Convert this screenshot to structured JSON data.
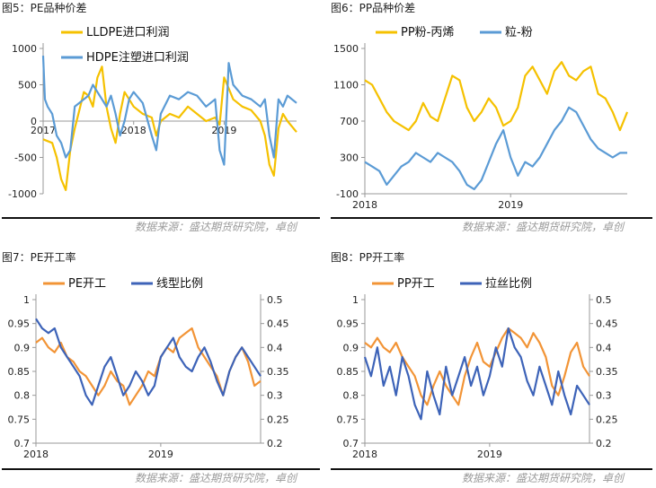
{
  "colors": {
    "orange": "#f29436",
    "blue": "#3d63b8",
    "yellow": "#f5c100",
    "skyblue": "#5b9bd5"
  },
  "panels": {
    "p5": {
      "title": "图5：PE品种价差",
      "source": "数据来源：盛达期货研究院，卓创"
    },
    "p6": {
      "title": "图6：PP品种价差",
      "source": "数据来源：盛达期货研究院，卓创"
    },
    "p7": {
      "title": "图7：PE开工率",
      "source": "数据来源：盛达期货研究院，卓创"
    },
    "p8": {
      "title": "图8：PP开工率",
      "source": "数据来源：盛达期货研究院，卓创"
    }
  },
  "chart_data": [
    {
      "id": "p5",
      "type": "line",
      "title": "",
      "y_ticks": [
        -1000,
        -500,
        0,
        500,
        1000
      ],
      "ylim": [
        -1000,
        1000
      ],
      "x_labels": [
        "2017",
        "2018",
        "2019"
      ],
      "x_label_pos": [
        2017.0,
        2018.0,
        2019.0
      ],
      "xlim": [
        2017.0,
        2019.8
      ],
      "series": [
        {
          "name": "LLDPE进口利润",
          "color": "yellow",
          "x": [
            2017.0,
            2017.1,
            2017.15,
            2017.2,
            2017.25,
            2017.3,
            2017.35,
            2017.4,
            2017.45,
            2017.5,
            2017.55,
            2017.6,
            2017.65,
            2017.7,
            2017.75,
            2017.8,
            2017.85,
            2017.9,
            2017.95,
            2018.0,
            2018.1,
            2018.2,
            2018.25,
            2018.3,
            2018.4,
            2018.5,
            2018.6,
            2018.7,
            2018.8,
            2018.9,
            2018.95,
            2019.0,
            2019.05,
            2019.1,
            2019.2,
            2019.3,
            2019.4,
            2019.45,
            2019.5,
            2019.55,
            2019.6,
            2019.65,
            2019.7,
            2019.8
          ],
          "y": [
            -250,
            -300,
            -500,
            -800,
            -950,
            -400,
            -100,
            150,
            400,
            350,
            200,
            600,
            750,
            200,
            -100,
            -300,
            100,
            400,
            300,
            200,
            100,
            50,
            -200,
            0,
            100,
            50,
            200,
            100,
            0,
            50,
            -50,
            600,
            450,
            300,
            200,
            150,
            0,
            -200,
            -600,
            -750,
            -100,
            100,
            0,
            -150
          ]
        },
        {
          "name": "HDPE注塑进口利润",
          "color": "skyblue",
          "x": [
            2017.0,
            2017.02,
            2017.05,
            2017.1,
            2017.15,
            2017.2,
            2017.25,
            2017.3,
            2017.35,
            2017.4,
            2017.45,
            2017.5,
            2017.55,
            2017.6,
            2017.65,
            2017.7,
            2017.75,
            2017.8,
            2017.85,
            2017.9,
            2017.95,
            2018.0,
            2018.1,
            2018.2,
            2018.25,
            2018.3,
            2018.4,
            2018.5,
            2018.6,
            2018.7,
            2018.8,
            2018.9,
            2018.95,
            2019.0,
            2019.05,
            2019.1,
            2019.2,
            2019.3,
            2019.4,
            2019.45,
            2019.5,
            2019.55,
            2019.6,
            2019.65,
            2019.7,
            2019.8
          ],
          "y": [
            900,
            300,
            200,
            100,
            -200,
            -300,
            -500,
            -400,
            200,
            250,
            300,
            350,
            500,
            400,
            300,
            200,
            350,
            100,
            -200,
            0,
            300,
            400,
            250,
            -200,
            -400,
            100,
            350,
            300,
            400,
            350,
            200,
            300,
            -400,
            -600,
            800,
            500,
            350,
            300,
            200,
            300,
            -200,
            -500,
            300,
            200,
            350,
            250
          ]
        }
      ]
    },
    {
      "id": "p6",
      "type": "line",
      "title": "",
      "y_ticks": [
        -100,
        300,
        700,
        1100,
        1500
      ],
      "ylim": [
        -100,
        1500
      ],
      "x_labels": [
        "2018",
        "2019"
      ],
      "x_label_pos": [
        2018.0,
        2019.0
      ],
      "xlim": [
        2018.0,
        2019.8
      ],
      "series": [
        {
          "name": "PP粉-丙烯",
          "color": "yellow",
          "x": [
            2018.0,
            2018.05,
            2018.1,
            2018.15,
            2018.2,
            2018.25,
            2018.3,
            2018.35,
            2018.4,
            2018.45,
            2018.5,
            2018.55,
            2018.6,
            2018.65,
            2018.7,
            2018.75,
            2018.8,
            2018.85,
            2018.9,
            2018.95,
            2019.0,
            2019.05,
            2019.1,
            2019.15,
            2019.2,
            2019.25,
            2019.3,
            2019.35,
            2019.4,
            2019.45,
            2019.5,
            2019.55,
            2019.6,
            2019.65,
            2019.7,
            2019.75,
            2019.8
          ],
          "y": [
            1150,
            1100,
            950,
            800,
            700,
            650,
            600,
            700,
            900,
            750,
            700,
            950,
            1200,
            1150,
            850,
            700,
            800,
            950,
            850,
            650,
            700,
            850,
            1200,
            1300,
            1150,
            1000,
            1250,
            1350,
            1200,
            1150,
            1250,
            1300,
            1000,
            950,
            800,
            600,
            800
          ]
        },
        {
          "name": "粒-粉",
          "color": "skyblue",
          "x": [
            2018.0,
            2018.05,
            2018.1,
            2018.15,
            2018.2,
            2018.25,
            2018.3,
            2018.35,
            2018.4,
            2018.45,
            2018.5,
            2018.55,
            2018.6,
            2018.65,
            2018.7,
            2018.75,
            2018.8,
            2018.85,
            2018.9,
            2018.95,
            2019.0,
            2019.05,
            2019.1,
            2019.15,
            2019.2,
            2019.25,
            2019.3,
            2019.35,
            2019.4,
            2019.45,
            2019.5,
            2019.55,
            2019.6,
            2019.65,
            2019.7,
            2019.75,
            2019.8
          ],
          "y": [
            250,
            200,
            150,
            0,
            100,
            200,
            250,
            350,
            300,
            250,
            350,
            300,
            250,
            150,
            0,
            -50,
            50,
            250,
            450,
            600,
            300,
            100,
            250,
            200,
            300,
            450,
            600,
            700,
            850,
            800,
            650,
            500,
            400,
            350,
            300,
            350,
            350
          ]
        }
      ]
    },
    {
      "id": "p7",
      "type": "line",
      "title": "",
      "y_ticks": [
        0.7,
        0.75,
        0.8,
        0.85,
        0.9,
        0.95,
        1
      ],
      "ylim": [
        0.7,
        1.0
      ],
      "y2_ticks": [
        0.2,
        0.25,
        0.3,
        0.35,
        0.4,
        0.45,
        0.5
      ],
      "y2lim": [
        0.2,
        0.5
      ],
      "x_labels": [
        "2018",
        "2019"
      ],
      "x_label_pos": [
        2018.0,
        2019.0
      ],
      "xlim": [
        2018.0,
        2019.8
      ],
      "series": [
        {
          "name": "PE开工",
          "color": "orange",
          "axis": "left",
          "x": [
            2018.0,
            2018.05,
            2018.1,
            2018.15,
            2018.2,
            2018.25,
            2018.3,
            2018.35,
            2018.4,
            2018.45,
            2018.5,
            2018.55,
            2018.6,
            2018.65,
            2018.7,
            2018.75,
            2018.8,
            2018.85,
            2018.9,
            2018.95,
            2019.0,
            2019.05,
            2019.1,
            2019.15,
            2019.2,
            2019.25,
            2019.3,
            2019.35,
            2019.4,
            2019.45,
            2019.5,
            2019.55,
            2019.6,
            2019.65,
            2019.7,
            2019.75,
            2019.8
          ],
          "y": [
            0.91,
            0.92,
            0.9,
            0.89,
            0.91,
            0.88,
            0.87,
            0.85,
            0.84,
            0.82,
            0.8,
            0.82,
            0.85,
            0.83,
            0.82,
            0.78,
            0.8,
            0.82,
            0.85,
            0.84,
            0.88,
            0.9,
            0.89,
            0.92,
            0.93,
            0.94,
            0.9,
            0.88,
            0.86,
            0.84,
            0.8,
            0.85,
            0.88,
            0.9,
            0.87,
            0.82,
            0.83
          ]
        },
        {
          "name": "线型比例",
          "color": "blue",
          "axis": "right",
          "x": [
            2018.0,
            2018.05,
            2018.1,
            2018.15,
            2018.2,
            2018.25,
            2018.3,
            2018.35,
            2018.4,
            2018.45,
            2018.5,
            2018.55,
            2018.6,
            2018.65,
            2018.7,
            2018.75,
            2018.8,
            2018.85,
            2018.9,
            2018.95,
            2019.0,
            2019.05,
            2019.1,
            2019.15,
            2019.2,
            2019.25,
            2019.3,
            2019.35,
            2019.4,
            2019.45,
            2019.5,
            2019.55,
            2019.6,
            2019.65,
            2019.7,
            2019.75,
            2019.8
          ],
          "y": [
            0.46,
            0.44,
            0.43,
            0.44,
            0.4,
            0.38,
            0.36,
            0.34,
            0.3,
            0.28,
            0.32,
            0.36,
            0.38,
            0.34,
            0.3,
            0.32,
            0.35,
            0.33,
            0.3,
            0.32,
            0.38,
            0.4,
            0.42,
            0.38,
            0.36,
            0.35,
            0.38,
            0.4,
            0.37,
            0.33,
            0.3,
            0.35,
            0.38,
            0.4,
            0.38,
            0.36,
            0.34
          ]
        }
      ]
    },
    {
      "id": "p8",
      "type": "line",
      "title": "",
      "y_ticks": [
        0.7,
        0.75,
        0.8,
        0.85,
        0.9,
        0.95,
        1
      ],
      "ylim": [
        0.7,
        1.0
      ],
      "y2_ticks": [
        0.2,
        0.25,
        0.3,
        0.35,
        0.4,
        0.45,
        0.5
      ],
      "y2lim": [
        0.2,
        0.5
      ],
      "x_labels": [
        "2018",
        "2019"
      ],
      "x_label_pos": [
        2018.0,
        2019.0
      ],
      "xlim": [
        2018.0,
        2019.8
      ],
      "series": [
        {
          "name": "PP开工",
          "color": "orange",
          "axis": "left",
          "x": [
            2018.0,
            2018.05,
            2018.1,
            2018.15,
            2018.2,
            2018.25,
            2018.3,
            2018.35,
            2018.4,
            2018.45,
            2018.5,
            2018.55,
            2018.6,
            2018.65,
            2018.7,
            2018.75,
            2018.8,
            2018.85,
            2018.9,
            2018.95,
            2019.0,
            2019.05,
            2019.1,
            2019.15,
            2019.2,
            2019.25,
            2019.3,
            2019.35,
            2019.4,
            2019.45,
            2019.5,
            2019.55,
            2019.6,
            2019.65,
            2019.7,
            2019.75,
            2019.8
          ],
          "y": [
            0.91,
            0.9,
            0.92,
            0.9,
            0.89,
            0.91,
            0.88,
            0.86,
            0.84,
            0.8,
            0.78,
            0.82,
            0.85,
            0.82,
            0.8,
            0.78,
            0.84,
            0.88,
            0.91,
            0.87,
            0.86,
            0.89,
            0.92,
            0.94,
            0.93,
            0.92,
            0.9,
            0.93,
            0.91,
            0.88,
            0.82,
            0.8,
            0.84,
            0.89,
            0.91,
            0.86,
            0.84
          ]
        },
        {
          "name": "拉丝比例",
          "color": "blue",
          "axis": "right",
          "x": [
            2018.0,
            2018.05,
            2018.1,
            2018.15,
            2018.2,
            2018.25,
            2018.3,
            2018.35,
            2018.4,
            2018.45,
            2018.5,
            2018.55,
            2018.6,
            2018.65,
            2018.7,
            2018.75,
            2018.8,
            2018.85,
            2018.9,
            2018.95,
            2019.0,
            2019.05,
            2019.1,
            2019.15,
            2019.2,
            2019.25,
            2019.3,
            2019.35,
            2019.4,
            2019.45,
            2019.5,
            2019.55,
            2019.6,
            2019.65,
            2019.7,
            2019.75,
            2019.8
          ],
          "y": [
            0.38,
            0.34,
            0.4,
            0.32,
            0.36,
            0.3,
            0.38,
            0.34,
            0.28,
            0.25,
            0.35,
            0.3,
            0.26,
            0.36,
            0.3,
            0.34,
            0.38,
            0.32,
            0.36,
            0.3,
            0.34,
            0.4,
            0.36,
            0.44,
            0.4,
            0.38,
            0.33,
            0.3,
            0.36,
            0.32,
            0.28,
            0.35,
            0.3,
            0.26,
            0.32,
            0.3,
            0.28
          ]
        }
      ]
    }
  ]
}
